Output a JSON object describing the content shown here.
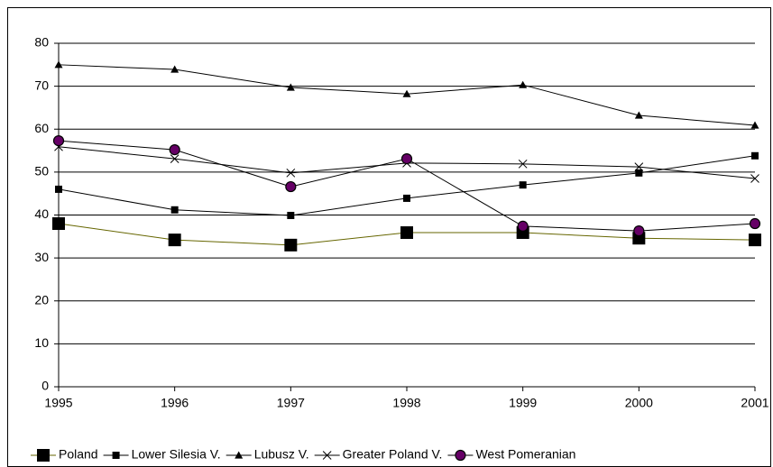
{
  "chart_data": {
    "type": "line",
    "categories": [
      "1995",
      "1996",
      "1997",
      "1998",
      "1999",
      "2000",
      "2001"
    ],
    "series": [
      {
        "name": "Poland",
        "color": "#666600",
        "marker": "square",
        "marker_size": 14,
        "values": [
          38.0,
          34.2,
          33.0,
          35.9,
          35.9,
          34.6,
          34.2
        ]
      },
      {
        "name": "Lower Silesia V.",
        "color": "#000000",
        "marker": "square",
        "marker_size": 8,
        "values": [
          46.0,
          41.2,
          39.9,
          43.9,
          47.0,
          49.8,
          53.8
        ]
      },
      {
        "name": "Lubusz V.",
        "color": "#000000",
        "marker": "triangle",
        "marker_size": 9,
        "values": [
          75.0,
          73.9,
          69.7,
          68.2,
          70.3,
          63.2,
          60.9
        ]
      },
      {
        "name": "Greater Poland V.",
        "color": "#000000",
        "marker": "x",
        "marker_size": 9,
        "values": [
          55.9,
          53.1,
          49.8,
          52.1,
          51.9,
          51.2,
          48.5
        ]
      },
      {
        "name": "West Pomeranian",
        "color": "#660066",
        "marker": "circle",
        "marker_size": 11,
        "values": [
          57.3,
          55.2,
          46.6,
          53.1,
          37.4,
          36.3,
          38.0
        ]
      }
    ],
    "ylim": [
      0,
      80
    ],
    "yticks": [
      0,
      10,
      20,
      30,
      40,
      50,
      60,
      70,
      80
    ],
    "grid": true,
    "legend": "bottom"
  }
}
